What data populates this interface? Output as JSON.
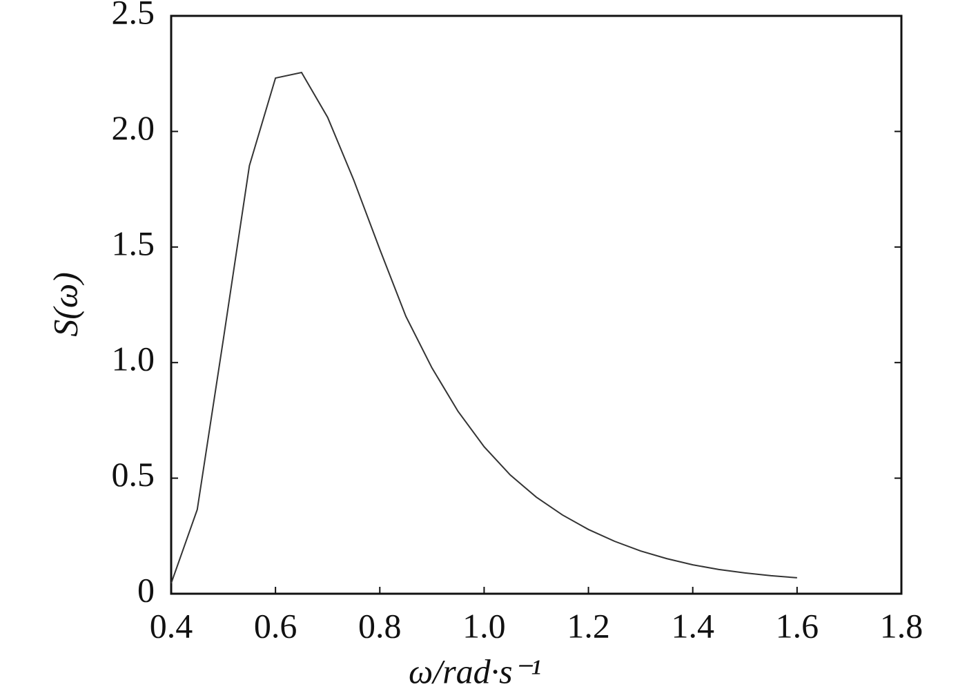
{
  "chart_data": {
    "type": "line",
    "x_label": "ω/rad·s⁻¹",
    "y_label": "S(ω)",
    "x": [
      0.4,
      0.45,
      0.5,
      0.55,
      0.6,
      0.65,
      0.7,
      0.75,
      0.8,
      0.85,
      0.9,
      0.95,
      1.0,
      1.05,
      1.1,
      1.15,
      1.2,
      1.25,
      1.3,
      1.35,
      1.4,
      1.45,
      1.5,
      1.55,
      1.6
    ],
    "series": [
      {
        "color": "#333333",
        "values": [
          0.045,
          0.364,
          1.1,
          1.852,
          2.231,
          2.255,
          2.061,
          1.79,
          1.49,
          1.2,
          0.977,
          0.789,
          0.636,
          0.514,
          0.418,
          0.341,
          0.278,
          0.227,
          0.185,
          0.152,
          0.125,
          0.105,
          0.09,
          0.078,
          0.069
        ]
      }
    ],
    "xlim": [
      0.4,
      1.8
    ],
    "ylim": [
      0,
      2.5
    ],
    "xticks": [
      0.4,
      0.6,
      0.8,
      {
        "value": 1.0,
        "label": "1.0"
      },
      1.2,
      1.4,
      1.6,
      1.8
    ],
    "yticks": [
      0,
      0.5,
      {
        "value": 1.0,
        "label": "1.0"
      },
      1.5,
      {
        "value": 2.0,
        "label": "2.0"
      },
      2.5
    ],
    "grid": false
  }
}
